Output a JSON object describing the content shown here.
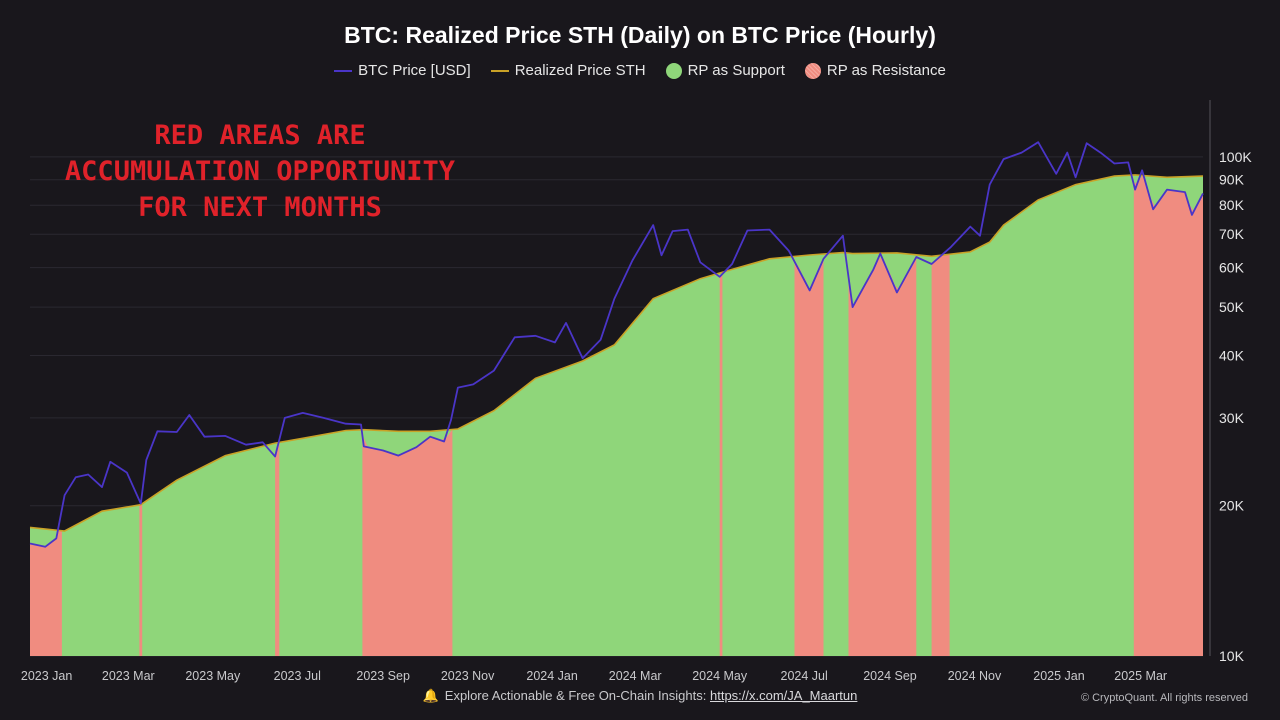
{
  "title": "BTC: Realized Price STH (Daily) on BTC Price (Hourly)",
  "legend": {
    "btc_price": "BTC Price [USD]",
    "realized_price": "Realized Price STH",
    "support": "RP as Support",
    "resistance": "RP as Resistance"
  },
  "annotation": "RED AREAS ARE ACCUMULATION OPPORTUNITY FOR NEXT MONTHS",
  "footer": {
    "text": "Explore Actionable & Free On-Chain Insights: ",
    "link": "https://x.com/JA_Maartun",
    "copyright": "© CryptoQuant. All rights reserved"
  },
  "colors": {
    "background": "#19171c",
    "btc_price": "#4a35c8",
    "realized_price": "#c9a227",
    "support": "#8fd67a",
    "resistance": "#f08c80",
    "annotation": "#e0222a"
  },
  "icons": {
    "footer": "bell-icon"
  },
  "chart_data": {
    "type": "area",
    "y_scale": "log",
    "ylim": [
      10000,
      130000
    ],
    "y_ticks": [
      10000,
      20000,
      30000,
      40000,
      50000,
      60000,
      70000,
      80000,
      90000,
      100000
    ],
    "y_tick_labels": [
      "10K",
      "20K",
      "30K",
      "40K",
      "50K",
      "60K",
      "70K",
      "80K",
      "90K",
      "100K"
    ],
    "x_range": [
      "2022-12-20",
      "2025-04-15"
    ],
    "x_ticks": [
      "2023-01-01",
      "2023-03-01",
      "2023-05-01",
      "2023-07-01",
      "2023-09-01",
      "2023-11-01",
      "2024-01-01",
      "2024-03-01",
      "2024-05-01",
      "2024-07-01",
      "2024-09-01",
      "2024-11-01",
      "2025-01-01",
      "2025-03-01"
    ],
    "x_tick_labels": [
      "2023 Jan",
      "2023 Mar",
      "2023 May",
      "2023 Jul",
      "2023 Sep",
      "2023 Nov",
      "2024 Jan",
      "2024 Mar",
      "2024 May",
      "2024 Jul",
      "2024 Sep",
      "2024 Nov",
      "2025 Jan",
      "2025 Mar"
    ],
    "series": [
      {
        "name": "BTC Price [USD]",
        "points": [
          [
            "2022-12-20",
            16800
          ],
          [
            "2022-12-31",
            16550
          ],
          [
            "2023-01-08",
            17200
          ],
          [
            "2023-01-14",
            21000
          ],
          [
            "2023-01-22",
            22800
          ],
          [
            "2023-01-31",
            23100
          ],
          [
            "2023-02-10",
            21800
          ],
          [
            "2023-02-16",
            24500
          ],
          [
            "2023-02-28",
            23300
          ],
          [
            "2023-03-10",
            20200
          ],
          [
            "2023-03-14",
            24700
          ],
          [
            "2023-03-22",
            28200
          ],
          [
            "2023-04-05",
            28100
          ],
          [
            "2023-04-14",
            30400
          ],
          [
            "2023-04-25",
            27500
          ],
          [
            "2023-05-10",
            27600
          ],
          [
            "2023-05-25",
            26500
          ],
          [
            "2023-06-06",
            26800
          ],
          [
            "2023-06-15",
            25100
          ],
          [
            "2023-06-22",
            30000
          ],
          [
            "2023-07-05",
            30700
          ],
          [
            "2023-07-20",
            30000
          ],
          [
            "2023-08-05",
            29200
          ],
          [
            "2023-08-16",
            29100
          ],
          [
            "2023-08-18",
            26300
          ],
          [
            "2023-09-01",
            25800
          ],
          [
            "2023-09-12",
            25200
          ],
          [
            "2023-09-25",
            26200
          ],
          [
            "2023-10-05",
            27500
          ],
          [
            "2023-10-15",
            26900
          ],
          [
            "2023-10-20",
            29700
          ],
          [
            "2023-10-25",
            34500
          ],
          [
            "2023-11-05",
            35000
          ],
          [
            "2023-11-20",
            37300
          ],
          [
            "2023-12-05",
            43500
          ],
          [
            "2023-12-20",
            43800
          ],
          [
            "2024-01-03",
            42500
          ],
          [
            "2024-01-11",
            46500
          ],
          [
            "2024-01-23",
            39500
          ],
          [
            "2024-02-05",
            43000
          ],
          [
            "2024-02-15",
            52000
          ],
          [
            "2024-02-28",
            62000
          ],
          [
            "2024-03-14",
            73000
          ],
          [
            "2024-03-20",
            63500
          ],
          [
            "2024-03-28",
            71000
          ],
          [
            "2024-04-08",
            71500
          ],
          [
            "2024-04-17",
            61500
          ],
          [
            "2024-05-01",
            57500
          ],
          [
            "2024-05-10",
            61000
          ],
          [
            "2024-05-21",
            71200
          ],
          [
            "2024-06-06",
            71500
          ],
          [
            "2024-06-20",
            64800
          ],
          [
            "2024-07-05",
            54000
          ],
          [
            "2024-07-15",
            62500
          ],
          [
            "2024-07-29",
            69500
          ],
          [
            "2024-08-05",
            50000
          ],
          [
            "2024-08-20",
            59500
          ],
          [
            "2024-08-25",
            64000
          ],
          [
            "2024-09-06",
            53500
          ],
          [
            "2024-09-20",
            63000
          ],
          [
            "2024-10-01",
            61000
          ],
          [
            "2024-10-15",
            66000
          ],
          [
            "2024-10-29",
            72500
          ],
          [
            "2024-11-05",
            69500
          ],
          [
            "2024-11-12",
            88000
          ],
          [
            "2024-11-22",
            99000
          ],
          [
            "2024-12-05",
            102000
          ],
          [
            "2024-12-17",
            107000
          ],
          [
            "2024-12-30",
            92500
          ],
          [
            "2025-01-07",
            102000
          ],
          [
            "2025-01-13",
            91000
          ],
          [
            "2025-01-21",
            106500
          ],
          [
            "2025-01-31",
            102000
          ],
          [
            "2025-02-10",
            97000
          ],
          [
            "2025-02-20",
            97500
          ],
          [
            "2025-02-25",
            86000
          ],
          [
            "2025-03-02",
            94000
          ],
          [
            "2025-03-10",
            78500
          ],
          [
            "2025-03-20",
            86000
          ],
          [
            "2025-04-02",
            85000
          ],
          [
            "2025-04-07",
            76500
          ],
          [
            "2025-04-15",
            84500
          ]
        ]
      },
      {
        "name": "Realized Price STH",
        "points": [
          [
            "2022-12-20",
            18100
          ],
          [
            "2023-01-14",
            17800
          ],
          [
            "2023-02-10",
            19500
          ],
          [
            "2023-03-10",
            20100
          ],
          [
            "2023-04-05",
            22500
          ],
          [
            "2023-05-10",
            25200
          ],
          [
            "2023-06-15",
            26700
          ],
          [
            "2023-07-05",
            27300
          ],
          [
            "2023-08-05",
            28300
          ],
          [
            "2023-08-18",
            28400
          ],
          [
            "2023-09-12",
            28200
          ],
          [
            "2023-10-05",
            28200
          ],
          [
            "2023-10-25",
            28500
          ],
          [
            "2023-11-20",
            31000
          ],
          [
            "2023-12-20",
            36000
          ],
          [
            "2024-01-23",
            39000
          ],
          [
            "2024-02-15",
            42000
          ],
          [
            "2024-03-14",
            52000
          ],
          [
            "2024-04-17",
            57000
          ],
          [
            "2024-05-10",
            59500
          ],
          [
            "2024-06-06",
            62500
          ],
          [
            "2024-07-05",
            63600
          ],
          [
            "2024-07-29",
            64300
          ],
          [
            "2024-08-05",
            64000
          ],
          [
            "2024-09-06",
            64200
          ],
          [
            "2024-10-01",
            63200
          ],
          [
            "2024-10-29",
            64500
          ],
          [
            "2024-11-12",
            67500
          ],
          [
            "2024-11-22",
            73000
          ],
          [
            "2024-12-17",
            82000
          ],
          [
            "2025-01-13",
            88000
          ],
          [
            "2025-02-10",
            91500
          ],
          [
            "2025-02-25",
            92000
          ],
          [
            "2025-03-20",
            91000
          ],
          [
            "2025-04-15",
            91500
          ]
        ]
      }
    ],
    "resistance_periods": [
      [
        "2022-12-20",
        "2023-01-12"
      ],
      [
        "2023-03-09",
        "2023-03-11"
      ],
      [
        "2023-06-15",
        "2023-06-18"
      ],
      [
        "2023-08-17",
        "2023-10-21"
      ],
      [
        "2024-05-01",
        "2024-05-03"
      ],
      [
        "2024-06-24",
        "2024-07-15"
      ],
      [
        "2024-08-02",
        "2024-09-20"
      ],
      [
        "2024-10-01",
        "2024-10-14"
      ],
      [
        "2025-02-24",
        "2025-04-15"
      ]
    ]
  }
}
